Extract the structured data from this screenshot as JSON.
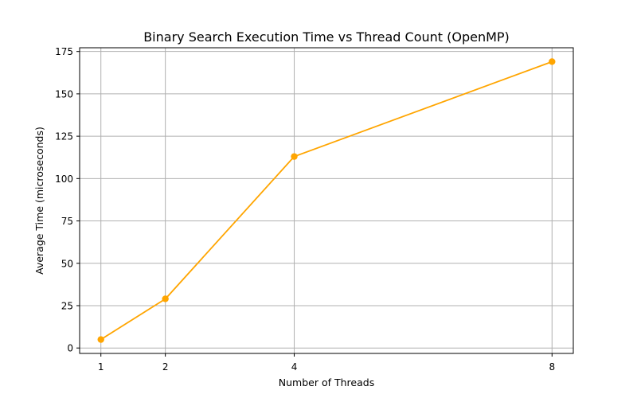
{
  "chart_data": {
    "type": "line",
    "title": "Binary Search Execution Time vs Thread Count (OpenMP)",
    "xlabel": "Number of Threads",
    "ylabel": "Average Time (microseconds)",
    "x": [
      1,
      2,
      4,
      8
    ],
    "series": [
      {
        "values": [
          5,
          29,
          113,
          169
        ],
        "color": "#ffa500",
        "marker": "circle"
      }
    ],
    "xticks": [
      1,
      2,
      4,
      8
    ],
    "yticks": [
      0,
      25,
      50,
      75,
      100,
      125,
      150,
      175
    ],
    "xlim": [
      0.67,
      8.33
    ],
    "ylim": [
      -3.2,
      177.2
    ],
    "grid": true
  }
}
